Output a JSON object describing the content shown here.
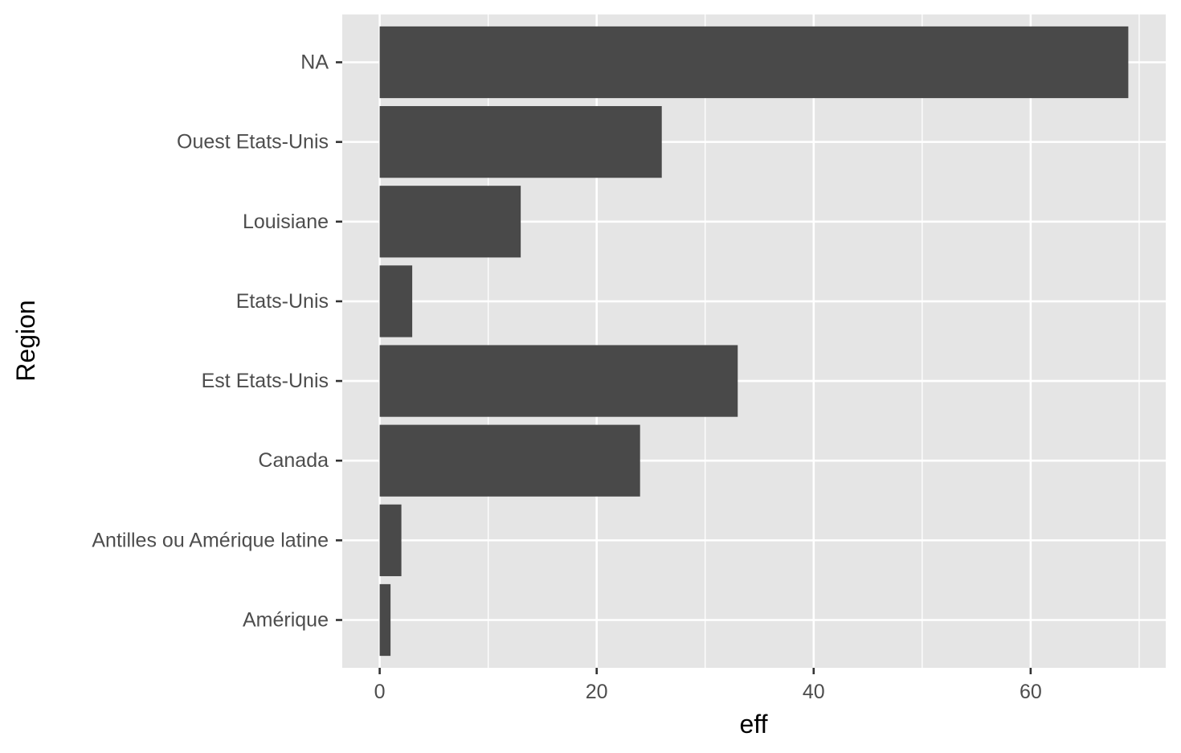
{
  "chart_data": {
    "type": "bar",
    "orientation": "horizontal",
    "categories": [
      "Amérique",
      "Antilles ou Amérique latine",
      "Canada",
      "Est Etats-Unis",
      "Etats-Unis",
      "Louisiane",
      "Ouest Etats-Unis",
      "NA"
    ],
    "values": [
      1,
      2,
      24,
      33,
      3,
      13,
      26,
      69
    ],
    "xlabel": "eff",
    "ylabel": "Region",
    "xlim": [
      -3.45,
      72.45
    ],
    "x_ticks": [
      0,
      20,
      40,
      60
    ],
    "grid": true,
    "panel_background": "#e5e5e5",
    "grid_color": "#ffffff",
    "bar_color": "#494949",
    "tick_label_color": "#4d4d4d"
  }
}
